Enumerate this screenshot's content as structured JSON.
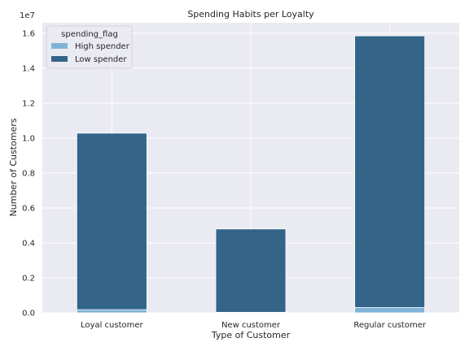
{
  "chart_data": {
    "type": "bar",
    "stacked": true,
    "title": "Spending Habits per Loyalty",
    "xlabel": "Type of Customer",
    "ylabel": "Number of Customers",
    "y_offset_label": "1e7",
    "y_scale": 10000000,
    "categories": [
      "Loyal customer",
      "New customer",
      "Regular customer"
    ],
    "series": [
      {
        "name": "High spender",
        "values": [
          180000,
          30000,
          300000
        ],
        "color": "#7fb3d8"
      },
      {
        "name": "Low spender",
        "values": [
          10100000,
          4770000,
          15550000
        ],
        "color": "#346588"
      }
    ],
    "ylim": [
      0,
      16600000
    ],
    "yticks": [
      0,
      2000000,
      4000000,
      6000000,
      8000000,
      10000000,
      12000000,
      14000000,
      16000000
    ],
    "ytick_labels": [
      "0.0",
      "0.2",
      "0.4",
      "0.6",
      "0.8",
      "1.0",
      "1.2",
      "1.4",
      "1.6"
    ],
    "grid": true,
    "legend": {
      "title": "spending_flag",
      "placement": "top-left"
    },
    "colors": {
      "background": "#eaeaf2",
      "grid": "#ffffff"
    }
  }
}
